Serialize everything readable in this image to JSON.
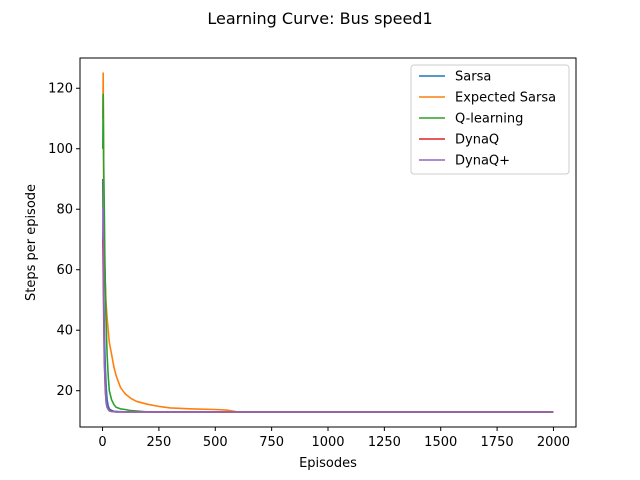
{
  "chart_data": {
    "type": "line",
    "title": "Learning Curve: Bus speed1",
    "xlabel": "Episodes",
    "ylabel": "Steps per episode",
    "xlim": [
      -100,
      2100
    ],
    "ylim": [
      8,
      130
    ],
    "xticks": [
      0,
      250,
      500,
      750,
      1000,
      1250,
      1500,
      1750,
      2000
    ],
    "yticks": [
      20,
      40,
      60,
      80,
      100,
      120
    ],
    "grid": false,
    "legend_position": "top-right",
    "series": [
      {
        "name": "Sarsa",
        "color": "#1f77b4",
        "x": [
          1,
          3,
          5,
          8,
          12,
          16,
          20,
          25,
          30,
          40,
          50,
          70,
          100,
          150,
          300,
          600,
          1000,
          1500,
          2000
        ],
        "y": [
          90,
          70,
          55,
          40,
          28,
          21,
          17,
          15,
          14,
          13.5,
          13.2,
          13.1,
          13,
          13,
          13,
          13,
          13,
          13,
          13
        ]
      },
      {
        "name": "Expected Sarsa",
        "color": "#ff7f0e",
        "x": [
          1,
          3,
          5,
          7,
          10,
          15,
          20,
          25,
          30,
          40,
          50,
          60,
          70,
          80,
          100,
          125,
          150,
          200,
          250,
          300,
          400,
          500,
          550,
          600,
          800,
          1000,
          1250,
          1500,
          1750,
          2000
        ],
        "y": [
          110,
          125,
          85,
          70,
          60,
          50,
          44,
          40,
          36,
          32,
          28,
          25,
          23,
          21,
          19,
          17.5,
          16.5,
          15.5,
          14.8,
          14.3,
          14,
          13.8,
          13.6,
          13,
          13,
          13,
          13,
          13,
          13,
          13
        ]
      },
      {
        "name": "Q-learning",
        "color": "#2ca02c",
        "x": [
          1,
          3,
          5,
          8,
          10,
          15,
          20,
          25,
          30,
          40,
          50,
          60,
          80,
          100,
          120,
          200,
          500,
          1000,
          1500,
          2000
        ],
        "y": [
          100,
          118,
          95,
          80,
          65,
          45,
          32,
          25,
          20,
          17,
          15.5,
          14.5,
          14,
          13.8,
          13.5,
          13,
          13,
          13,
          13,
          13
        ]
      },
      {
        "name": "DynaQ",
        "color": "#d62728",
        "x": [
          1,
          3,
          5,
          8,
          12,
          16,
          20,
          25,
          30,
          40,
          60,
          100,
          300,
          1000,
          2000
        ],
        "y": [
          70,
          60,
          45,
          30,
          20,
          16,
          14.5,
          14,
          13.5,
          13.2,
          13,
          13,
          13,
          13,
          13
        ]
      },
      {
        "name": "DynaQ+",
        "color": "#9467bd",
        "x": [
          1,
          3,
          5,
          8,
          12,
          16,
          20,
          25,
          30,
          40,
          60,
          100,
          300,
          1000,
          2000
        ],
        "y": [
          70,
          80,
          50,
          32,
          21,
          16,
          14.5,
          13.8,
          13.3,
          13.1,
          13,
          13,
          13,
          13,
          13
        ]
      }
    ]
  }
}
